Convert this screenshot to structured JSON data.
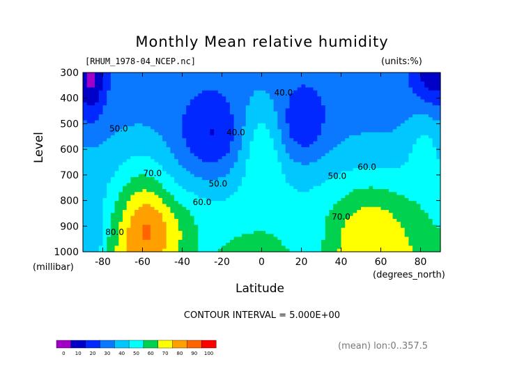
{
  "header": {
    "title": "Monthly Mean relative humidity",
    "subtitle": "[RHUM_1978-04_NCEP.nc]",
    "units": "(units:%)"
  },
  "axes": {
    "ylabel": "Level",
    "yunit": "(millibar)",
    "xlabel": "Latitude",
    "xunit": "(degrees_north)"
  },
  "footer": {
    "contour_interval": "CONTOUR INTERVAL = 5.000E+00",
    "mean_note": "(mean) lon:0..357.5"
  },
  "chart_data": {
    "type": "heatmap",
    "title": "Monthly Mean relative humidity",
    "xlabel": "Latitude",
    "ylabel": "Level",
    "xlim": [
      -90,
      90
    ],
    "ylim": [
      1000,
      300
    ],
    "x_ticks": [
      -80,
      -60,
      -40,
      -20,
      0,
      20,
      40,
      60,
      80
    ],
    "y_ticks": [
      300,
      400,
      500,
      600,
      700,
      800,
      900,
      1000
    ],
    "contour_interval": 5,
    "levels": [
      0,
      10,
      20,
      30,
      40,
      50,
      60,
      70,
      80,
      90,
      100
    ],
    "colors": [
      "#a000c8",
      "#0000c8",
      "#0028ff",
      "#0a78ff",
      "#00c8ff",
      "#00ffff",
      "#00d250",
      "#ffff00",
      "#ffa000",
      "#ff6400",
      "#ff0000"
    ],
    "contour_labels": [
      {
        "value": "40.0",
        "lat": 11,
        "lev": 390
      },
      {
        "value": "40.0",
        "lat": -13,
        "lev": 545
      },
      {
        "value": "50.0",
        "lat": -72,
        "lev": 530
      },
      {
        "value": "50.0",
        "lat": -22,
        "lev": 745
      },
      {
        "value": "50.0",
        "lat": 38,
        "lev": 715
      },
      {
        "value": "60.0",
        "lat": 53,
        "lev": 680
      },
      {
        "value": "60.0",
        "lat": -30,
        "lev": 818
      },
      {
        "value": "70.0",
        "lat": -55,
        "lev": 705
      },
      {
        "value": "70.0",
        "lat": 40,
        "lev": 875
      },
      {
        "value": "80.0",
        "lat": -74,
        "lev": 935
      }
    ],
    "colorbar_ticks": [
      "0",
      "10",
      "20",
      "30",
      "40",
      "50",
      "60",
      "70",
      "80",
      "90",
      "100"
    ]
  }
}
